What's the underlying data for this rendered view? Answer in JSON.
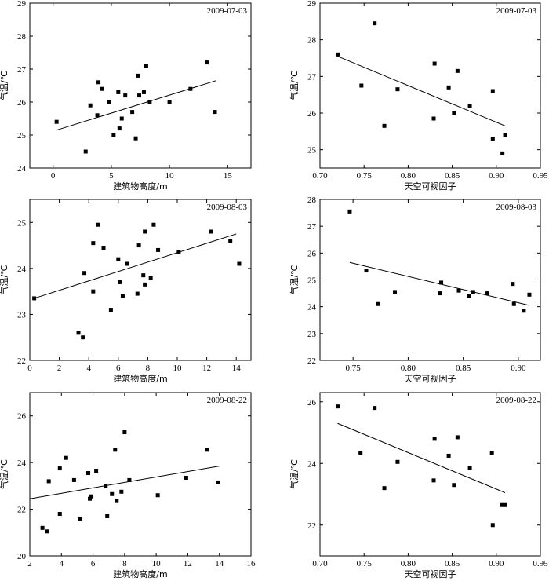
{
  "chart_data": [
    {
      "type": "scatter",
      "title": "2009-07-03",
      "xlabel": "建筑物高度/m",
      "ylabel": "气温/℃",
      "xlim": [
        -2,
        17
      ],
      "ylim": [
        24,
        29
      ],
      "xticks": [
        0,
        5,
        10,
        15
      ],
      "yticks": [
        24,
        25,
        26,
        27,
        28,
        29
      ],
      "points": [
        [
          0.3,
          25.4
        ],
        [
          2.8,
          24.5
        ],
        [
          3.2,
          25.9
        ],
        [
          3.8,
          25.6
        ],
        [
          3.9,
          26.6
        ],
        [
          4.2,
          26.4
        ],
        [
          4.8,
          26.0
        ],
        [
          5.2,
          25.0
        ],
        [
          5.6,
          26.3
        ],
        [
          5.7,
          25.2
        ],
        [
          5.9,
          25.5
        ],
        [
          6.2,
          26.2
        ],
        [
          6.8,
          25.7
        ],
        [
          7.1,
          24.9
        ],
        [
          7.3,
          26.8
        ],
        [
          7.4,
          26.2
        ],
        [
          7.8,
          26.3
        ],
        [
          8.0,
          27.1
        ],
        [
          8.3,
          26.0
        ],
        [
          10.0,
          26.0
        ],
        [
          11.8,
          26.4
        ],
        [
          13.2,
          27.2
        ],
        [
          13.9,
          25.7
        ]
      ],
      "fit": [
        [
          0.3,
          25.15
        ],
        [
          14.0,
          26.65
        ]
      ]
    },
    {
      "type": "scatter",
      "title": "2009-07-03",
      "xlabel": "天空可视因子",
      "ylabel": "气温/℃",
      "xlim": [
        0.7,
        0.95
      ],
      "ylim": [
        24.5,
        29
      ],
      "xticks": [
        0.7,
        0.75,
        0.8,
        0.85,
        0.9,
        0.95
      ],
      "yticks": [
        25,
        26,
        27,
        28,
        29
      ],
      "points": [
        [
          0.72,
          27.6
        ],
        [
          0.747,
          26.75
        ],
        [
          0.762,
          28.45
        ],
        [
          0.773,
          25.65
        ],
        [
          0.788,
          26.65
        ],
        [
          0.829,
          25.85
        ],
        [
          0.83,
          27.35
        ],
        [
          0.846,
          26.7
        ],
        [
          0.852,
          26.0
        ],
        [
          0.856,
          27.15
        ],
        [
          0.87,
          26.2
        ],
        [
          0.896,
          26.6
        ],
        [
          0.896,
          25.3
        ],
        [
          0.907,
          24.9
        ],
        [
          0.91,
          25.4
        ]
      ],
      "fit": [
        [
          0.72,
          27.55
        ],
        [
          0.91,
          25.65
        ]
      ]
    },
    {
      "type": "scatter",
      "title": "2009-08-03",
      "xlabel": "建筑物高度/m",
      "ylabel": "气温/℃",
      "xlim": [
        0,
        15
      ],
      "ylim": [
        22,
        25.5
      ],
      "xticks": [
        0,
        2,
        4,
        6,
        8,
        10,
        12,
        14
      ],
      "yticks": [
        22,
        23,
        24,
        25
      ],
      "points": [
        [
          0.3,
          23.35
        ],
        [
          3.3,
          22.6
        ],
        [
          3.6,
          22.5
        ],
        [
          3.7,
          23.9
        ],
        [
          4.3,
          23.5
        ],
        [
          4.3,
          24.55
        ],
        [
          4.6,
          24.95
        ],
        [
          5.0,
          24.45
        ],
        [
          5.5,
          23.1
        ],
        [
          6.0,
          24.2
        ],
        [
          6.1,
          23.7
        ],
        [
          6.3,
          23.4
        ],
        [
          6.6,
          24.1
        ],
        [
          7.3,
          23.45
        ],
        [
          7.4,
          24.5
        ],
        [
          7.7,
          23.85
        ],
        [
          7.8,
          23.65
        ],
        [
          7.8,
          24.8
        ],
        [
          8.2,
          23.8
        ],
        [
          8.4,
          24.95
        ],
        [
          8.7,
          24.4
        ],
        [
          10.1,
          24.35
        ],
        [
          12.3,
          24.8
        ],
        [
          13.6,
          24.6
        ],
        [
          14.2,
          24.1
        ]
      ],
      "fit": [
        [
          0.3,
          23.35
        ],
        [
          14.0,
          24.75
        ]
      ]
    },
    {
      "type": "scatter",
      "title": "2009-08-03",
      "xlabel": "天空可视因子",
      "ylabel": "气温/℃",
      "xlim": [
        0.72,
        0.92
      ],
      "ylim": [
        22,
        28
      ],
      "xticks": [
        0.75,
        0.8,
        0.85,
        0.9
      ],
      "yticks": [
        22,
        23,
        24,
        25,
        26,
        27,
        28
      ],
      "points": [
        [
          0.747,
          27.55
        ],
        [
          0.762,
          25.35
        ],
        [
          0.773,
          24.1
        ],
        [
          0.788,
          24.55
        ],
        [
          0.829,
          24.5
        ],
        [
          0.83,
          24.9
        ],
        [
          0.846,
          24.6
        ],
        [
          0.855,
          24.4
        ],
        [
          0.859,
          24.55
        ],
        [
          0.872,
          24.5
        ],
        [
          0.895,
          24.85
        ],
        [
          0.896,
          24.1
        ],
        [
          0.905,
          23.85
        ],
        [
          0.91,
          24.45
        ]
      ],
      "fit": [
        [
          0.747,
          25.65
        ],
        [
          0.91,
          24.05
        ]
      ]
    },
    {
      "type": "scatter",
      "title": "2009-08-22",
      "xlabel": "建筑物高度/m",
      "ylabel": "气温/℃",
      "xlim": [
        2,
        16
      ],
      "ylim": [
        20,
        27
      ],
      "xticks": [
        2,
        4,
        6,
        8,
        10,
        12,
        14,
        16
      ],
      "yticks": [
        20,
        22,
        24,
        26
      ],
      "points": [
        [
          2.8,
          21.2
        ],
        [
          3.1,
          21.05
        ],
        [
          3.2,
          23.2
        ],
        [
          3.9,
          23.75
        ],
        [
          3.9,
          21.8
        ],
        [
          4.3,
          24.2
        ],
        [
          4.8,
          23.25
        ],
        [
          5.2,
          21.6
        ],
        [
          5.7,
          23.55
        ],
        [
          5.8,
          22.45
        ],
        [
          5.9,
          22.55
        ],
        [
          6.2,
          23.65
        ],
        [
          6.8,
          23.0
        ],
        [
          6.9,
          21.7
        ],
        [
          7.2,
          22.65
        ],
        [
          7.4,
          24.55
        ],
        [
          7.5,
          22.35
        ],
        [
          7.8,
          22.75
        ],
        [
          8.0,
          25.3
        ],
        [
          8.3,
          23.25
        ],
        [
          10.1,
          22.6
        ],
        [
          11.9,
          23.35
        ],
        [
          13.2,
          24.55
        ],
        [
          13.9,
          23.15
        ]
      ],
      "fit": [
        [
          2.0,
          22.45
        ],
        [
          14.0,
          23.85
        ]
      ]
    },
    {
      "type": "scatter",
      "title": "2009-08-22",
      "xlabel": "天空可视因子",
      "ylabel": "气温/℃",
      "xlim": [
        0.7,
        0.95
      ],
      "ylim": [
        21,
        26.3
      ],
      "xticks": [
        0.7,
        0.75,
        0.8,
        0.85,
        0.9,
        0.95
      ],
      "yticks": [
        22,
        24,
        26
      ],
      "points": [
        [
          0.72,
          25.85
        ],
        [
          0.746,
          24.35
        ],
        [
          0.762,
          25.8
        ],
        [
          0.773,
          23.2
        ],
        [
          0.788,
          24.05
        ],
        [
          0.829,
          23.45
        ],
        [
          0.83,
          24.8
        ],
        [
          0.846,
          24.25
        ],
        [
          0.852,
          23.3
        ],
        [
          0.856,
          24.85
        ],
        [
          0.87,
          23.85
        ],
        [
          0.895,
          24.35
        ],
        [
          0.896,
          22.0
        ],
        [
          0.906,
          22.65
        ],
        [
          0.91,
          22.65
        ]
      ],
      "fit": [
        [
          0.72,
          25.3
        ],
        [
          0.91,
          23.05
        ]
      ]
    }
  ]
}
